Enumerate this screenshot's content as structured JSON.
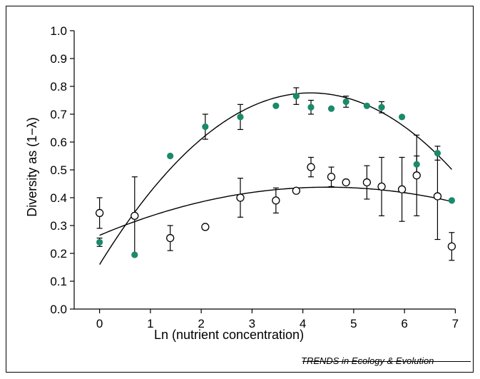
{
  "source_credit": "TRENDS in Ecology & Evolution",
  "chart_data": {
    "type": "scatter",
    "title": "",
    "xlabel": "Ln (nutrient concentration)",
    "ylabel": "Diversity as (1−λ)",
    "xlim": [
      -0.5,
      7.5
    ],
    "ylim": [
      0.0,
      1.0
    ],
    "x_ticks": [
      "0",
      "1",
      "2",
      "3",
      "4",
      "5",
      "6",
      "7"
    ],
    "y_ticks": [
      "0.0",
      "0.1",
      "0.2",
      "0.3",
      "0.4",
      "0.5",
      "0.6",
      "0.7",
      "0.8",
      "0.9",
      "1.0"
    ],
    "grid": false,
    "legend": "none",
    "series": [
      {
        "marker": "filled-circle",
        "color": "#1a8a6a",
        "x": [
          0.0,
          0.69,
          1.39,
          2.08,
          2.77,
          3.47,
          3.87,
          4.16,
          4.56,
          4.85,
          5.26,
          5.55,
          5.95,
          6.24,
          6.65,
          6.93
        ],
        "y": [
          0.24,
          0.195,
          0.55,
          0.655,
          0.69,
          0.73,
          0.765,
          0.725,
          0.72,
          0.745,
          0.73,
          0.725,
          0.69,
          0.52,
          0.56,
          0.39
        ],
        "yerr": [
          0.015,
          null,
          null,
          0.045,
          0.045,
          null,
          0.03,
          0.025,
          null,
          0.02,
          null,
          0.02,
          null,
          0.03,
          0.025,
          null
        ]
      },
      {
        "marker": "open-circle",
        "color": "#000000",
        "x": [
          0.0,
          0.69,
          1.39,
          2.08,
          2.77,
          3.47,
          3.87,
          4.16,
          4.56,
          4.85,
          5.26,
          5.55,
          5.95,
          6.24,
          6.65,
          6.93
        ],
        "y": [
          0.345,
          0.335,
          0.255,
          0.295,
          0.4,
          0.39,
          0.425,
          0.51,
          0.475,
          0.455,
          0.455,
          0.44,
          0.43,
          0.48,
          0.405,
          0.225
        ],
        "yerr": [
          0.055,
          0.14,
          0.045,
          null,
          0.07,
          0.045,
          null,
          0.035,
          0.035,
          null,
          0.06,
          0.105,
          0.115,
          0.145,
          0.155,
          0.05
        ]
      }
    ],
    "fits": [
      {
        "type": "quadratic",
        "color": "#000000",
        "coefficients": [
          0.16,
          0.2967,
          -0.0357
        ]
      },
      {
        "type": "quadratic",
        "color": "#000000",
        "coefficients": [
          0.265,
          0.0771,
          -0.0086
        ]
      }
    ]
  }
}
